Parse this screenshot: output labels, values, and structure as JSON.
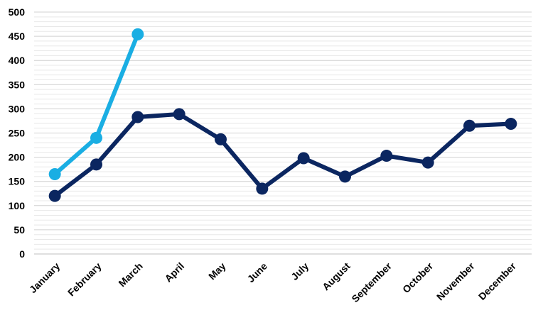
{
  "chart_data": {
    "type": "line",
    "title": "",
    "xlabel": "",
    "ylabel": "",
    "ylim": [
      0,
      500
    ],
    "yticks": [
      0,
      50,
      100,
      150,
      200,
      250,
      300,
      350,
      400,
      450,
      500
    ],
    "grid": true,
    "legend": "none",
    "categories": [
      "January",
      "February",
      "March",
      "April",
      "May",
      "June",
      "July",
      "August",
      "September",
      "October",
      "November",
      "December"
    ],
    "series": [
      {
        "color": "#0b2660",
        "values": [
          120,
          185,
          283,
          289,
          237,
          135,
          198,
          160,
          203,
          189,
          265,
          269
        ]
      },
      {
        "color": "#1aaee3",
        "values": [
          165,
          240,
          454,
          null,
          null,
          null,
          null,
          null,
          null,
          null,
          null,
          null
        ]
      }
    ],
    "colors": {
      "grid_major": "#d0d0d0",
      "grid_minor": "#e8e8e8",
      "axis": "#bfbfbf"
    }
  }
}
